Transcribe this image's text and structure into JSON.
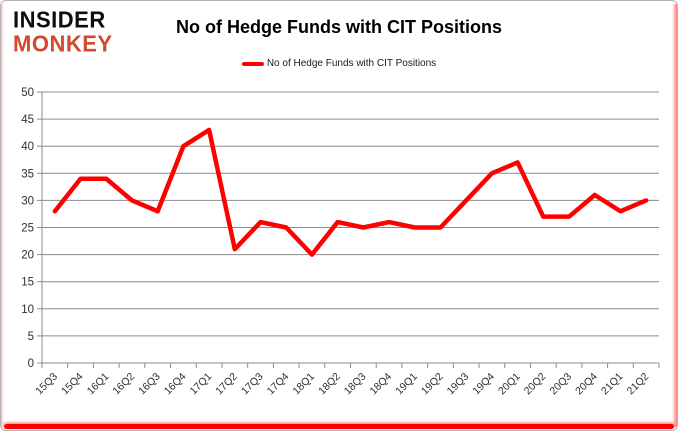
{
  "logo": {
    "line1": "INSIDER",
    "line2": "MONKEY",
    "monkey_color": "#d1492f"
  },
  "header": {
    "title": "No of Hedge Funds with CIT Positions"
  },
  "legend": {
    "label": "No of Hedge Funds with CIT Positions"
  },
  "colors": {
    "series_red": "#ff0000",
    "gridline_gray": "#8c8c8c",
    "axis_text": "#303030"
  },
  "chart_data": {
    "type": "line",
    "title": "No of Hedge Funds with CIT Positions",
    "categories": [
      "15Q3",
      "15Q4",
      "16Q1",
      "16Q2",
      "16Q3",
      "16Q4",
      "17Q1",
      "17Q2",
      "17Q3",
      "17Q4",
      "18Q1",
      "18Q2",
      "18Q3",
      "18Q4",
      "19Q1",
      "19Q2",
      "19Q3",
      "19Q4",
      "20Q1",
      "20Q2",
      "20Q3",
      "20Q4",
      "21Q1",
      "21Q2"
    ],
    "series": [
      {
        "name": "No of Hedge Funds with CIT Positions",
        "color": "#ff0000",
        "values": [
          28,
          34,
          34,
          30,
          28,
          40,
          43,
          21,
          26,
          25,
          20,
          26,
          25,
          26,
          25,
          25,
          30,
          35,
          37,
          27,
          27,
          31,
          28,
          30
        ]
      }
    ],
    "xlabel": "",
    "ylabel": "",
    "ylim": [
      0,
      50
    ],
    "ytick_step": 5,
    "yticks": [
      0,
      5,
      10,
      15,
      20,
      25,
      30,
      35,
      40,
      45,
      50
    ],
    "grid": true,
    "legend_position": "top",
    "x_label_rotation": -45
  }
}
